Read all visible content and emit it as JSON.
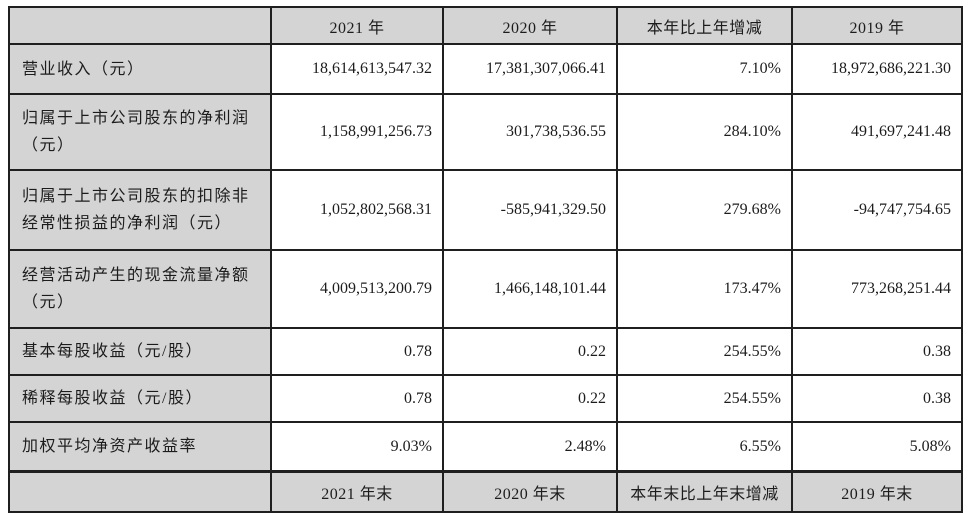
{
  "table": {
    "header": {
      "col0": "",
      "cols": [
        "2021 年",
        "2020 年",
        "本年比上年增减",
        "2019 年"
      ]
    },
    "rows": [
      {
        "label": "营业收入（元）",
        "values": [
          "18,614,613,547.32",
          "17,381,307,066.41",
          "7.10%",
          "18,972,686,221.30"
        ]
      },
      {
        "label": "归属于上市公司股东的净利润（元）",
        "values": [
          "1,158,991,256.73",
          "301,738,536.55",
          "284.10%",
          "491,697,241.48"
        ]
      },
      {
        "label": "归属于上市公司股东的扣除非经常性损益的净利润（元）",
        "values": [
          "1,052,802,568.31",
          "-585,941,329.50",
          "279.68%",
          "-94,747,754.65"
        ]
      },
      {
        "label": "经营活动产生的现金流量净额（元）",
        "values": [
          "4,009,513,200.79",
          "1,466,148,101.44",
          "173.47%",
          "773,268,251.44"
        ]
      },
      {
        "label": "基本每股收益（元/股）",
        "values": [
          "0.78",
          "0.22",
          "254.55%",
          "0.38"
        ]
      },
      {
        "label": "稀释每股收益（元/股）",
        "values": [
          "0.78",
          "0.22",
          "254.55%",
          "0.38"
        ]
      },
      {
        "label": "加权平均净资产收益率",
        "values": [
          "9.03%",
          "2.48%",
          "6.55%",
          "5.08%"
        ]
      }
    ],
    "footer": {
      "col0": "",
      "cols": [
        "2021 年末",
        "2020 年末",
        "本年末比上年末增减",
        "2019 年末"
      ]
    }
  },
  "colors": {
    "shaded_cell_bg": "#d4d4d4",
    "border": "#1f1f1f",
    "text": "#1c1c1c",
    "data_cell_bg": "#ffffff"
  }
}
